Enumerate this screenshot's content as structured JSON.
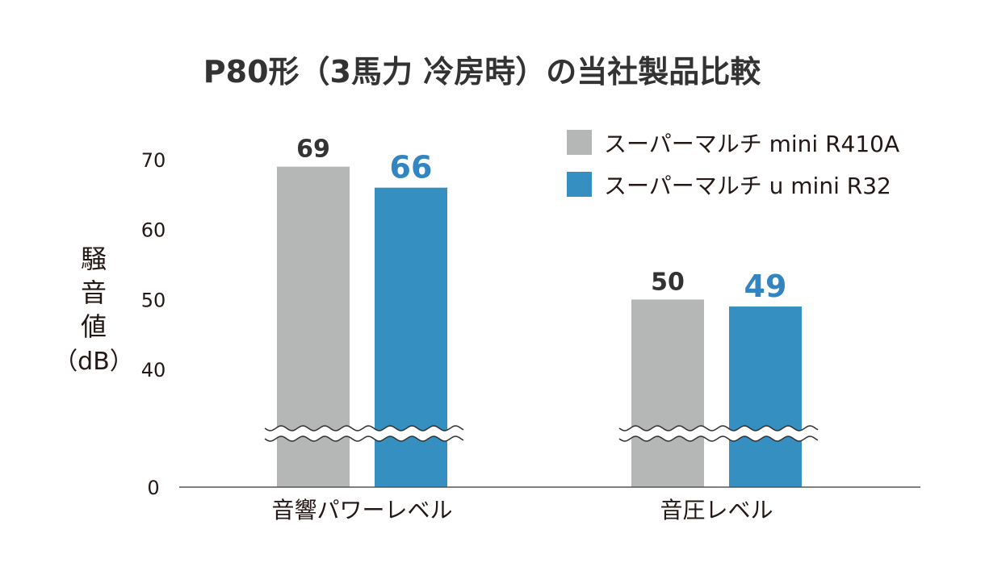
{
  "chart_data": {
    "type": "bar",
    "title": "P80形（3馬力 冷房時）の当社製品比較",
    "ylabel": "騒音値（dB）",
    "ylabel_lines": [
      "騒",
      "音",
      "値",
      "（dB）"
    ],
    "categories": [
      "音響パワーレベル",
      "音圧レベル"
    ],
    "series": [
      {
        "name": "スーパーマルチ mini R410A",
        "values": [
          69,
          50
        ],
        "color": "#b5b6b6",
        "label_color": "#333333"
      },
      {
        "name": "スーパーマルチ u mini R32",
        "values": [
          66,
          49
        ],
        "color": "#3590c1",
        "label_color": "#3285c0"
      }
    ],
    "yticks": [
      0,
      40,
      50,
      60,
      70
    ],
    "axis_break": [
      0,
      40
    ],
    "ylim": [
      0,
      70
    ],
    "grid": false,
    "legend": "top-right"
  }
}
